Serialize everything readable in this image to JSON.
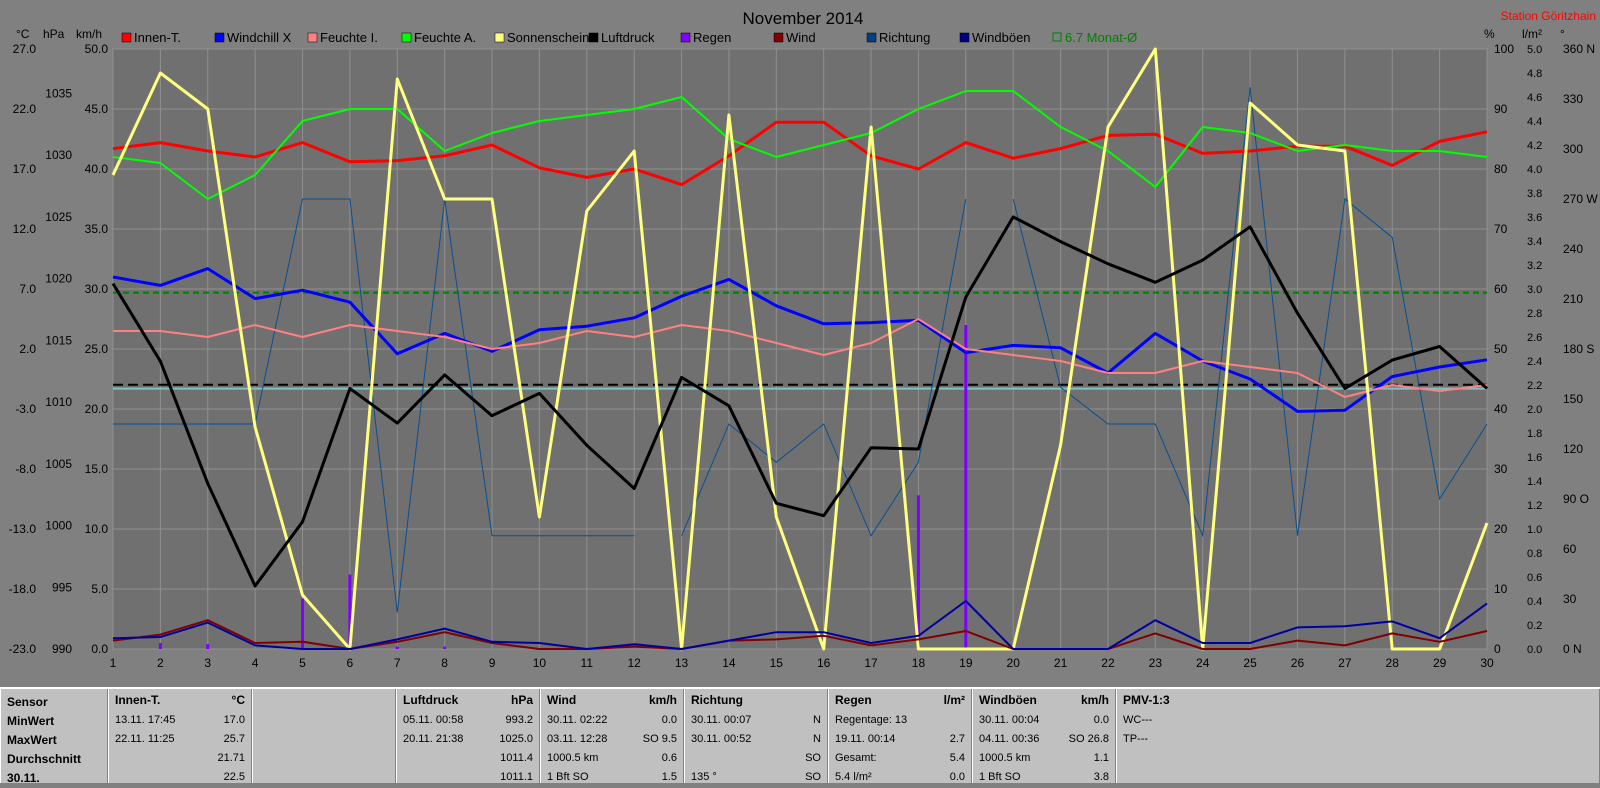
{
  "title": "November 2014",
  "station": "Station Göritzhain",
  "colors": {
    "background": "#808080",
    "plot": "#707070",
    "grid": "#9a9a9a"
  },
  "axis_units": {
    "temp": "°C",
    "pressure": "hPa",
    "wind": "km/h",
    "percent": "%",
    "rain": "l/m²",
    "direction": "°"
  },
  "legend": [
    {
      "label": "Innen-T.",
      "color": "#ff0000"
    },
    {
      "label": "Windchill X",
      "color": "#0000ff"
    },
    {
      "label": "Feuchte I.",
      "color": "#ff8080"
    },
    {
      "label": "Feuchte A.",
      "color": "#00ff00"
    },
    {
      "label": "Sonnenschein",
      "color": "#ffff80"
    },
    {
      "label": "Luftdruck",
      "color": "#000000"
    },
    {
      "label": "Regen",
      "color": "#8000ff"
    },
    {
      "label": "Wind",
      "color": "#800000"
    },
    {
      "label": "Richtung",
      "color": "#004080"
    },
    {
      "label": "Windböen",
      "color": "#000080"
    },
    {
      "label": "6.7 Monat-Ø",
      "color": "#008000"
    }
  ],
  "chart_data": {
    "type": "line",
    "title": "November 2014",
    "x": [
      1,
      2,
      3,
      4,
      5,
      6,
      7,
      8,
      9,
      10,
      11,
      12,
      13,
      14,
      15,
      16,
      17,
      18,
      19,
      20,
      21,
      22,
      23,
      24,
      25,
      26,
      27,
      28,
      29,
      30
    ],
    "wind_ticks": [
      "50.0",
      "45.0",
      "40.0",
      "35.0",
      "30.0",
      "25.0",
      "20.0",
      "15.0",
      "10.0",
      "5.0",
      "0.0"
    ],
    "temp_ticks": [
      "27.0",
      "22.0",
      "17.0",
      "12.0",
      "7.0",
      "2.0",
      "-3.0",
      "-8.0",
      "-13.0",
      "-18.0",
      "-23.0"
    ],
    "pressure_ticks": [
      "1035",
      "1030",
      "1025",
      "1020",
      "1015",
      "1010",
      "1005",
      "1000",
      "995",
      "990"
    ],
    "percent_ticks": [
      "100",
      "90",
      "80",
      "70",
      "60",
      "50",
      "40",
      "30",
      "20",
      "10",
      "0"
    ],
    "rain_ticks": [
      "5.0",
      "4.8",
      "4.6",
      "4.4",
      "4.2",
      "4.0",
      "3.8",
      "3.6",
      "3.4",
      "3.2",
      "3.0",
      "2.8",
      "2.6",
      "2.4",
      "2.2",
      "2.0",
      "1.8",
      "1.6",
      "1.4",
      "1.2",
      "1.0",
      "0.8",
      "0.6",
      "0.4",
      "0.2",
      "0.0"
    ],
    "direction_ticks": [
      "360 N",
      "330",
      "300",
      "270 W",
      "240",
      "210",
      "180 S",
      "150",
      "120",
      "90 O",
      "60",
      "30",
      "0 N"
    ],
    "wind_range": [
      0,
      50
    ],
    "temp_range": [
      -23,
      27
    ],
    "pressure_range": [
      990,
      1038.6
    ],
    "percent_range": [
      0,
      100
    ],
    "rain_range": [
      0,
      5
    ],
    "direction_range": [
      0,
      360
    ],
    "reference_lines": [
      {
        "axis": "temp",
        "value": 6.7,
        "color": "#008000",
        "dash": "6,4"
      },
      {
        "axis": "pressure",
        "value": 1011.4,
        "color": "#000000",
        "dash": "10,5"
      },
      {
        "axis": "wind",
        "value": 21.7,
        "color": "#80c0c0",
        "dash": ""
      }
    ],
    "series": [
      {
        "name": "Innen-T.",
        "axis": "wind",
        "color": "#ff0000",
        "width": 3,
        "values": [
          41.7,
          42.2,
          41.5,
          41.0,
          42.2,
          40.6,
          40.7,
          41.1,
          42.0,
          40.1,
          39.3,
          40.0,
          38.7,
          41.1,
          43.9,
          43.9,
          41.1,
          40.0,
          42.2,
          40.9,
          41.7,
          42.8,
          42.9,
          41.3,
          41.5,
          41.9,
          41.9,
          40.3,
          42.3,
          43.1
        ]
      },
      {
        "name": "Windchill X",
        "axis": "wind",
        "color": "#0000ff",
        "width": 3,
        "values": [
          31.0,
          30.3,
          31.7,
          29.2,
          29.9,
          28.9,
          24.6,
          26.3,
          24.8,
          26.6,
          26.9,
          27.6,
          29.4,
          30.8,
          28.6,
          27.1,
          27.2,
          27.4,
          24.7,
          25.3,
          25.1,
          23.0,
          26.3,
          24.0,
          22.5,
          19.8,
          19.9,
          22.7,
          23.5,
          24.1
        ]
      },
      {
        "name": "Feuchte I.",
        "axis": "percent",
        "color": "#ff8080",
        "width": 2,
        "values": [
          53,
          53,
          52,
          54,
          52,
          54,
          53,
          52,
          50,
          51,
          53,
          52,
          54,
          53,
          51,
          49,
          51,
          55,
          50,
          49,
          48,
          46,
          46,
          48,
          47,
          46,
          42,
          44,
          43,
          44
        ]
      },
      {
        "name": "Feuchte A.",
        "axis": "percent",
        "color": "#00ff00",
        "width": 2,
        "values": [
          82,
          81,
          75,
          79,
          88,
          90,
          90,
          83,
          86,
          88,
          89,
          90,
          92,
          85,
          82,
          84,
          86,
          90,
          93,
          93,
          87,
          83,
          77,
          87,
          86,
          83,
          84,
          83,
          83,
          82
        ]
      },
      {
        "name": "Sonnenschein",
        "axis": "percent",
        "color": "#ffff80",
        "width": 3,
        "values": [
          79,
          96,
          90,
          37,
          9,
          0,
          95,
          75,
          75,
          22,
          73,
          83,
          0,
          89,
          22,
          0,
          87,
          0,
          0,
          0,
          34,
          87,
          100,
          0,
          91,
          84,
          83,
          0,
          0,
          21
        ]
      },
      {
        "name": "Luftdruck",
        "axis": "pressure",
        "color": "#000000",
        "width": 3,
        "values": [
          1019.6,
          1013.3,
          1003.4,
          995.1,
          1000.3,
          1011.1,
          1008.3,
          1012.2,
          1008.9,
          1010.7,
          1006.5,
          1003.0,
          1012.0,
          1009.7,
          1001.8,
          1000.8,
          1006.3,
          1006.2,
          1018.5,
          1025.0,
          1023.0,
          1021.2,
          1019.7,
          1021.5,
          1024.2,
          1017.2,
          1011.1,
          1013.4,
          1014.5,
          1011.1
        ]
      },
      {
        "name": "Wind",
        "axis": "wind",
        "color": "#800000",
        "width": 2,
        "values": [
          0.7,
          1.2,
          2.4,
          0.5,
          0.6,
          0.0,
          0.6,
          1.4,
          0.5,
          0.0,
          0.0,
          0.2,
          0.0,
          0.7,
          0.8,
          1.1,
          0.3,
          0.8,
          1.5,
          0.0,
          0.0,
          0.0,
          1.3,
          0.0,
          0.0,
          0.7,
          0.3,
          1.3,
          0.6,
          1.5
        ]
      },
      {
        "name": "Windböen",
        "axis": "wind",
        "color": "#0000a0",
        "width": 2,
        "values": [
          0.9,
          1.0,
          2.2,
          0.3,
          0.0,
          0.0,
          0.8,
          1.7,
          0.6,
          0.5,
          0.0,
          0.4,
          0.0,
          0.7,
          1.4,
          1.4,
          0.5,
          1.1,
          4.0,
          0.0,
          0.0,
          0.0,
          2.4,
          0.5,
          0.5,
          1.8,
          1.9,
          2.3,
          0.9,
          3.8
        ]
      },
      {
        "name": "Richtung",
        "axis": "direction",
        "color": "#0b4f8f",
        "width": 1,
        "segments": [
          [
            [
              1,
              135
            ],
            [
              2,
              135
            ],
            [
              3,
              135
            ],
            [
              4,
              135
            ],
            [
              5,
              270
            ],
            [
              6,
              270
            ],
            [
              7,
              22
            ],
            [
              8,
              270
            ],
            [
              9,
              68
            ],
            [
              10,
              68
            ]
          ],
          [
            [
              10,
              68
            ],
            [
              11,
              68
            ],
            [
              12,
              68
            ]
          ],
          [
            [
              13,
              68
            ],
            [
              14,
              135
            ],
            [
              15,
              112
            ],
            [
              16,
              135
            ],
            [
              17,
              68
            ],
            [
              18,
              112
            ],
            [
              19,
              270
            ]
          ],
          [
            [
              20,
              270
            ],
            [
              21,
              157
            ],
            [
              22,
              135
            ],
            [
              23,
              135
            ],
            [
              24,
              68
            ],
            [
              25,
              337
            ],
            [
              26,
              68
            ],
            [
              27,
              270
            ],
            [
              28,
              247
            ],
            [
              29,
              90
            ],
            [
              30,
              135
            ]
          ]
        ]
      }
    ],
    "rain": {
      "name": "Regen",
      "axis": "rain",
      "color": "#8000ff",
      "x": [
        2,
        3,
        5,
        6,
        7,
        8,
        18,
        19
      ],
      "values": [
        0.05,
        0.04,
        0.42,
        0.62,
        0.02,
        0.02,
        1.28,
        2.7
      ]
    }
  },
  "stats": {
    "sensor": {
      "header": "Sensor",
      "rows": [
        "MinWert",
        "MaxWert",
        "Durchschnitt",
        "30.11."
      ]
    },
    "innen": {
      "header": "Innen-T.",
      "unit": "°C",
      "rows": [
        [
          "13.11.  17:45",
          "17.0"
        ],
        [
          "22.11.  11:25",
          "25.7"
        ],
        [
          "",
          "21.71"
        ],
        [
          "",
          "22.5"
        ]
      ]
    },
    "luftdruck": {
      "header": "Luftdruck",
      "unit": "hPa",
      "rows": [
        [
          "05.11.  00:58",
          "993.2"
        ],
        [
          "20.11.  21:38",
          "1025.0"
        ],
        [
          "",
          "1011.4"
        ],
        [
          "",
          "1011.1"
        ]
      ]
    },
    "wind": {
      "header": "Wind",
      "unit": "km/h",
      "rows": [
        [
          "30.11.  02:22",
          "0.0"
        ],
        [
          "03.11.  12:28",
          "SO 9.5"
        ],
        [
          "1000.5 km",
          "0.6"
        ],
        [
          "1 Bft SO",
          "1.5"
        ]
      ]
    },
    "richtung": {
      "header": "Richtung",
      "unit": "",
      "rows": [
        [
          "30.11.  00:07",
          "N"
        ],
        [
          "30.11.  00:52",
          "N"
        ],
        [
          "",
          "SO"
        ],
        [
          "135 °",
          "SO"
        ]
      ]
    },
    "regen": {
      "header": "Regen",
      "unit": "l/m²",
      "rows": [
        [
          "Regentage: 13",
          ""
        ],
        [
          "19.11.  00:14",
          "2.7"
        ],
        [
          "Gesamt:",
          "5.4"
        ],
        [
          "5.4 l/m²",
          "0.0"
        ]
      ]
    },
    "windboeen": {
      "header": "Windböen",
      "unit": "km/h",
      "rows": [
        [
          "30.11.  00:04",
          "0.0"
        ],
        [
          "04.11.  00:36",
          "SO 26.8"
        ],
        [
          "1000.5 km",
          "1.1"
        ],
        [
          "1 Bft SO",
          "3.8"
        ]
      ]
    },
    "pmv": {
      "header": "PMV-1:3",
      "rows": [
        "WC---",
        "TP---"
      ]
    }
  }
}
